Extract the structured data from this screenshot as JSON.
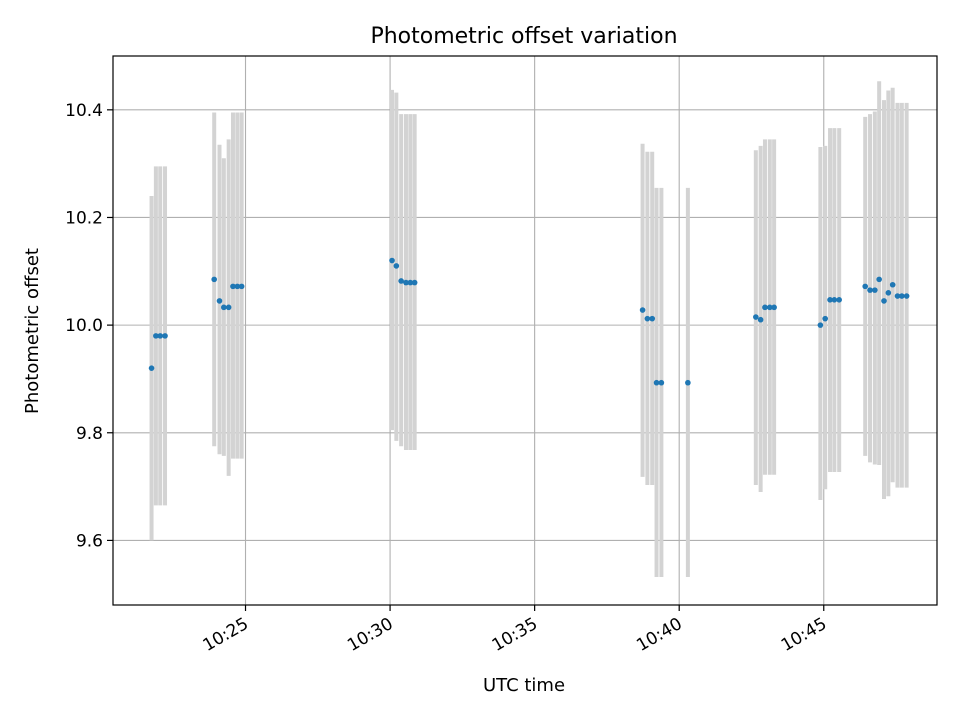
{
  "chart_data": {
    "type": "scatter",
    "title": "Photometric offset variation",
    "xlabel": "UTC time",
    "ylabel": "Photometric offset",
    "x_axis_kind": "time",
    "xlim": [
      "10:20:25",
      "10:48:55"
    ],
    "ylim": [
      9.48,
      10.5
    ],
    "yticks": [
      9.6,
      9.8,
      10.0,
      10.2,
      10.4
    ],
    "ytick_labels": [
      "9.6",
      "9.8",
      "10.0",
      "10.2",
      "10.4"
    ],
    "xticks": [
      "10:25",
      "10:30",
      "10:35",
      "10:40",
      "10:45"
    ],
    "xtick_labels": [
      "10:25",
      "10:30",
      "10:35",
      "10:40",
      "10:45"
    ],
    "xtick_rotation_deg": 30,
    "grid": true,
    "legend": null,
    "colors": {
      "marker": "#1f77b4",
      "errorbar": "#d3d3d3",
      "grid": "#b0b0b0"
    },
    "series": [
      {
        "points": [
          {
            "x": "10:21:45",
            "y": 9.92,
            "err_low": 9.6,
            "err_high": 10.24
          },
          {
            "x": "10:21:54",
            "y": 9.98,
            "err_low": 9.665,
            "err_high": 10.295
          },
          {
            "x": "10:22:03",
            "y": 9.98,
            "err_low": 9.665,
            "err_high": 10.295
          },
          {
            "x": "10:22:13",
            "y": 9.98,
            "err_low": 9.665,
            "err_high": 10.295
          },
          {
            "x": "10:23:55",
            "y": 10.085,
            "err_low": 9.775,
            "err_high": 10.395
          },
          {
            "x": "10:24:06",
            "y": 10.045,
            "err_low": 9.76,
            "err_high": 10.335
          },
          {
            "x": "10:24:15",
            "y": 10.033,
            "err_low": 9.757,
            "err_high": 10.31
          },
          {
            "x": "10:24:25",
            "y": 10.033,
            "err_low": 9.72,
            "err_high": 10.345
          },
          {
            "x": "10:24:34",
            "y": 10.072,
            "err_low": 9.752,
            "err_high": 10.395
          },
          {
            "x": "10:24:43",
            "y": 10.072,
            "err_low": 9.752,
            "err_high": 10.395
          },
          {
            "x": "10:24:52",
            "y": 10.072,
            "err_low": 9.752,
            "err_high": 10.395
          },
          {
            "x": "10:30:04",
            "y": 10.12,
            "err_low": 9.805,
            "err_high": 10.437
          },
          {
            "x": "10:30:13",
            "y": 10.11,
            "err_low": 9.785,
            "err_high": 10.432
          },
          {
            "x": "10:30:23",
            "y": 10.082,
            "err_low": 9.775,
            "err_high": 10.392
          },
          {
            "x": "10:30:33",
            "y": 10.079,
            "err_low": 9.768,
            "err_high": 10.392
          },
          {
            "x": "10:30:42",
            "y": 10.079,
            "err_low": 9.768,
            "err_high": 10.392
          },
          {
            "x": "10:30:51",
            "y": 10.079,
            "err_low": 9.768,
            "err_high": 10.392
          },
          {
            "x": "10:38:44",
            "y": 10.028,
            "err_low": 9.718,
            "err_high": 10.337
          },
          {
            "x": "10:38:54",
            "y": 10.012,
            "err_low": 9.703,
            "err_high": 10.322
          },
          {
            "x": "10:39:04",
            "y": 10.012,
            "err_low": 9.703,
            "err_high": 10.322
          },
          {
            "x": "10:39:13",
            "y": 9.893,
            "err_low": 9.532,
            "err_high": 10.255
          },
          {
            "x": "10:39:23",
            "y": 9.893,
            "err_low": 9.532,
            "err_high": 10.255
          },
          {
            "x": "10:40:18",
            "y": 9.893,
            "err_low": 9.532,
            "err_high": 10.255
          },
          {
            "x": "10:42:39",
            "y": 10.015,
            "err_low": 9.703,
            "err_high": 10.325
          },
          {
            "x": "10:42:49",
            "y": 10.01,
            "err_low": 9.69,
            "err_high": 10.333
          },
          {
            "x": "10:42:58",
            "y": 10.033,
            "err_low": 9.722,
            "err_high": 10.345
          },
          {
            "x": "10:43:08",
            "y": 10.033,
            "err_low": 9.722,
            "err_high": 10.345
          },
          {
            "x": "10:43:17",
            "y": 10.033,
            "err_low": 9.722,
            "err_high": 10.345
          },
          {
            "x": "10:44:53",
            "y": 10.0,
            "err_low": 9.675,
            "err_high": 10.331
          },
          {
            "x": "10:45:03",
            "y": 10.012,
            "err_low": 9.695,
            "err_high": 10.333
          },
          {
            "x": "10:45:13",
            "y": 10.047,
            "err_low": 9.727,
            "err_high": 10.366
          },
          {
            "x": "10:45:22",
            "y": 10.047,
            "err_low": 9.727,
            "err_high": 10.366
          },
          {
            "x": "10:45:32",
            "y": 10.047,
            "err_low": 9.727,
            "err_high": 10.366
          },
          {
            "x": "10:46:26",
            "y": 10.072,
            "err_low": 9.757,
            "err_high": 10.387
          },
          {
            "x": "10:46:36",
            "y": 10.065,
            "err_low": 9.745,
            "err_high": 10.392
          },
          {
            "x": "10:46:46",
            "y": 10.065,
            "err_low": 9.741,
            "err_high": 10.397
          },
          {
            "x": "10:46:55",
            "y": 10.085,
            "err_low": 9.74,
            "err_high": 10.453
          },
          {
            "x": "10:47:05",
            "y": 10.045,
            "err_low": 9.677,
            "err_high": 10.418
          },
          {
            "x": "10:47:14",
            "y": 10.06,
            "err_low": 9.682,
            "err_high": 10.436
          },
          {
            "x": "10:47:23",
            "y": 10.075,
            "err_low": 9.708,
            "err_high": 10.441
          },
          {
            "x": "10:47:33",
            "y": 10.054,
            "err_low": 9.698,
            "err_high": 10.413
          },
          {
            "x": "10:47:42",
            "y": 10.054,
            "err_low": 9.698,
            "err_high": 10.413
          },
          {
            "x": "10:47:52",
            "y": 10.054,
            "err_low": 9.698,
            "err_high": 10.413
          }
        ]
      }
    ]
  }
}
